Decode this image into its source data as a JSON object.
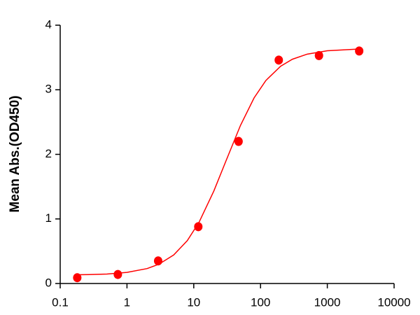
{
  "chart_data": {
    "type": "scatter",
    "y_label": "Mean Abs.(OD450)",
    "x_log": true,
    "xlim": [
      0.1,
      10000
    ],
    "xticks": [
      0.1,
      1,
      10,
      100,
      1000,
      10000
    ],
    "ylim": [
      0,
      4
    ],
    "yticks": [
      0,
      1,
      2,
      3,
      4
    ],
    "series": [
      {
        "type": "scatter",
        "color": "#ff0000",
        "x": [
          0.18,
          0.73,
          2.93,
          11.7,
          46.9,
          187.5,
          750,
          3000
        ],
        "values": [
          0.09,
          0.14,
          0.35,
          0.88,
          2.2,
          3.46,
          3.53,
          3.6
        ]
      },
      {
        "type": "line",
        "color": "#ff0000",
        "x": [
          0.18,
          0.3,
          0.5,
          1,
          2,
          3,
          5,
          8,
          12,
          20,
          30,
          50,
          80,
          120,
          200,
          300,
          500,
          1000,
          3000
        ],
        "values": [
          0.135,
          0.139,
          0.147,
          0.172,
          0.231,
          0.298,
          0.441,
          0.664,
          0.948,
          1.433,
          1.885,
          2.447,
          2.874,
          3.143,
          3.365,
          3.473,
          3.552,
          3.604,
          3.631
        ]
      }
    ]
  }
}
